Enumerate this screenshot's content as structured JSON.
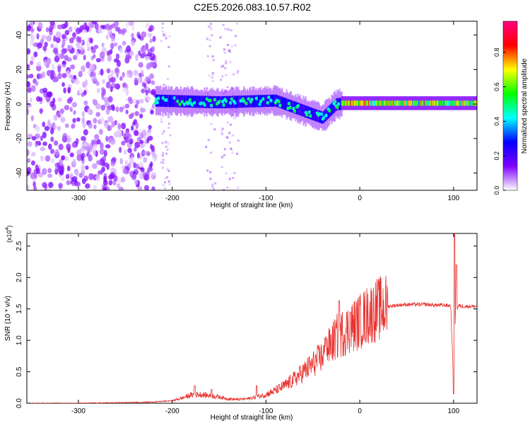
{
  "title": "C2E5.2026.083.10.57.R02",
  "chart_data": [
    {
      "type": "heatmap",
      "xlabel": "Height of straight line (km)",
      "ylabel": "Frequency (Hz)",
      "xlim": [
        -355,
        125
      ],
      "ylim": [
        -50,
        48
      ],
      "xticks": [
        -300,
        -200,
        -100,
        0,
        100
      ],
      "yticks": [
        -40,
        -20,
        0,
        20,
        40
      ],
      "colorbar": {
        "label": "Normalized spectral amplitude",
        "range": [
          0.0,
          0.98
        ],
        "ticks": [
          0.0,
          0.2,
          0.4,
          0.6,
          0.8
        ],
        "tick_labels": [
          "0.0",
          "0.2",
          "0.4",
          "0.6",
          "0.8"
        ],
        "colormap_stops": [
          "#ffffff",
          "#8000ff",
          "#0000ff",
          "#00ffff",
          "#00ff00",
          "#ffff00",
          "#ff0000",
          "#ff0080"
        ]
      },
      "regions": [
        {
          "x_range": [
            -355,
            -218
          ],
          "character": "broadband noise",
          "amplitude": 0.12
        },
        {
          "x_range": [
            -218,
            -20
          ],
          "character": "signal band near 0 Hz",
          "center_hz_at": [
            [
              -218,
              2
            ],
            [
              -150,
              1
            ],
            [
              -90,
              2
            ],
            [
              -60,
              -4
            ],
            [
              -40,
              -8
            ],
            [
              -25,
              0
            ]
          ],
          "amplitude": 0.45
        },
        {
          "x_range": [
            -20,
            125
          ],
          "character": "narrow strong band at ~0 Hz",
          "center_hz": 0.5,
          "amplitude": 0.75
        }
      ]
    },
    {
      "type": "line",
      "xlabel": "Height of straight line (km)",
      "ylabel": "SNR (10 * v/v)",
      "y_multiplier_label": "(x10",
      "y_multiplier_exp": "4",
      "y_multiplier_close": ")",
      "xlim": [
        -355,
        125
      ],
      "ylim": [
        0,
        2.7
      ],
      "xticks": [
        -300,
        -200,
        -100,
        0,
        100
      ],
      "yticks": [
        0.0,
        0.5,
        1.0,
        1.5,
        2.0,
        2.5
      ],
      "ytick_labels": [
        "0.0",
        "0.5",
        "1.0",
        "1.5",
        "2.0",
        "2.5"
      ],
      "color": "#e8322f",
      "series": [
        {
          "x": [
            -355,
            -300,
            -250,
            -220,
            -200,
            -190,
            -180,
            -170,
            -160,
            -150,
            -140,
            -130,
            -120,
            -110,
            -100,
            -90,
            -80,
            -70,
            -60,
            -50,
            -40,
            -30,
            -25,
            -20,
            -10,
            0,
            10,
            20,
            30,
            40,
            50,
            60,
            70,
            80,
            90,
            97,
            100,
            102,
            105,
            110,
            125
          ],
          "y": [
            0.0,
            0.0,
            0.01,
            0.02,
            0.04,
            0.08,
            0.13,
            0.14,
            0.12,
            0.1,
            0.07,
            0.06,
            0.07,
            0.1,
            0.14,
            0.2,
            0.28,
            0.38,
            0.5,
            0.62,
            0.75,
            0.95,
            1.05,
            1.1,
            1.2,
            1.3,
            1.42,
            1.5,
            1.54,
            1.56,
            1.57,
            1.57,
            1.57,
            1.56,
            1.56,
            1.55,
            0.3,
            1.4,
            1.55,
            1.54,
            1.54
          ],
          "peaks": [
            [
              -176,
              0.28
            ],
            [
              -158,
              0.22
            ],
            [
              -110,
              0.28
            ],
            [
              -36,
              1.05
            ],
            [
              -22,
              1.63
            ],
            [
              -10,
              1.45
            ],
            [
              100,
              0.15
            ],
            [
              101,
              2.7
            ],
            [
              103,
              2.2
            ]
          ]
        }
      ]
    }
  ]
}
